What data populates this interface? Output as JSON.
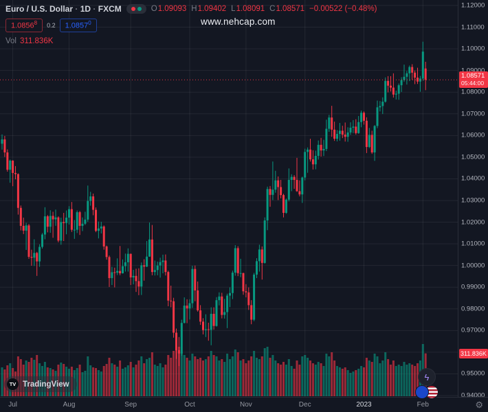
{
  "colors": {
    "background": "#131722",
    "grid": "rgba(255,255,255,0.07)",
    "up": "#089981",
    "down": "#f23645",
    "accent_blue": "#2962ff",
    "text": "#d1d4dc",
    "muted": "#787b86"
  },
  "legend": {
    "symbol": "Euro / U.S. Dollar",
    "sep": "·",
    "interval": "1D",
    "exchange": "FXCM",
    "o_label": "O",
    "o_value": "1.09093",
    "h_label": "H",
    "h_value": "1.09402",
    "l_label": "L",
    "l_value": "1.08091",
    "c_label": "C",
    "c_value": "1.08571",
    "change": "−0.00522 (−0.48%)",
    "bid_main": "1.0856",
    "bid_sup": "8",
    "spread": "0.2",
    "ask_main": "1.0857",
    "ask_sup": "0",
    "vol_label": "Vol",
    "vol_value": "311.836K"
  },
  "watermark": "www.nehcap.com",
  "last_price": {
    "value": "1.08571",
    "countdown": "05:44:00"
  },
  "volume_label": "311.836K",
  "tv_badge": {
    "logo": "TV",
    "name": "TradingView"
  },
  "price_axis": {
    "labels": [
      "1.12000",
      "1.11000",
      "1.10000",
      "1.09000",
      "1.08000",
      "1.07000",
      "1.06000",
      "1.05000",
      "1.04000",
      "1.03000",
      "1.02000",
      "1.01000",
      "1.00000",
      "0.99000",
      "0.98000",
      "0.97000",
      "0.96000",
      "0.95000",
      "0.94000"
    ]
  },
  "icons": {
    "boost": "ϟ",
    "gear": "⚙"
  },
  "chart_data": {
    "type": "candlestick",
    "title": "Euro / U.S. Dollar, 1D, FXCM",
    "ylim": [
      0.94,
      1.12
    ],
    "price_step": 0.01,
    "x_ticks": [
      {
        "label": "Jul",
        "i": 4
      },
      {
        "label": "Aug",
        "i": 25
      },
      {
        "label": "Sep",
        "i": 48
      },
      {
        "label": "Oct",
        "i": 70
      },
      {
        "label": "Nov",
        "i": 91
      },
      {
        "label": "Dec",
        "i": 113
      },
      {
        "label": "2023",
        "i": 135,
        "year": true
      },
      {
        "label": "Feb",
        "i": 157
      }
    ],
    "candles": [
      [
        1.0562,
        1.0605,
        1.0535,
        1.0582,
        210
      ],
      [
        1.0582,
        1.0598,
        1.0501,
        1.0522,
        195
      ],
      [
        1.0522,
        1.0536,
        1.0433,
        1.0442,
        225
      ],
      [
        1.0442,
        1.0489,
        1.0382,
        1.0484,
        240
      ],
      [
        1.0484,
        1.0486,
        1.0366,
        1.0427,
        205
      ],
      [
        1.0427,
        1.0459,
        1.0398,
        1.0422,
        180
      ],
      [
        1.0422,
        1.0425,
        1.0235,
        1.0266,
        290
      ],
      [
        1.0266,
        1.0277,
        1.0162,
        1.0183,
        270
      ],
      [
        1.0183,
        1.0221,
        1.0145,
        1.0161,
        230
      ],
      [
        1.0161,
        1.0197,
        1.0072,
        1.0185,
        260
      ],
      [
        1.0185,
        1.0192,
        1.0031,
        1.004,
        250
      ],
      [
        1.004,
        1.0073,
        0.9999,
        1.0036,
        280
      ],
      [
        1.0036,
        1.0121,
        0.9998,
        1.0058,
        265
      ],
      [
        1.0058,
        1.0063,
        0.9952,
        1.0019,
        300
      ],
      [
        1.0019,
        1.0098,
        0.9994,
        1.0086,
        240
      ],
      [
        1.0086,
        1.015,
        1.0078,
        1.0143,
        220
      ],
      [
        1.0143,
        1.0269,
        1.0121,
        1.0227,
        250
      ],
      [
        1.0227,
        1.0233,
        1.0153,
        1.0179,
        210
      ],
      [
        1.0179,
        1.0255,
        1.0151,
        1.0229,
        205
      ],
      [
        1.0229,
        1.0248,
        1.0128,
        1.0213,
        195
      ],
      [
        1.0213,
        1.0258,
        1.0183,
        1.0222,
        185
      ],
      [
        1.0222,
        1.0227,
        1.0107,
        1.0115,
        230
      ],
      [
        1.0115,
        1.0221,
        1.0096,
        1.0201,
        245
      ],
      [
        1.0201,
        1.0243,
        1.0113,
        1.0196,
        235
      ],
      [
        1.0196,
        1.0254,
        1.0144,
        1.0221,
        215
      ],
      [
        1.0221,
        1.0274,
        1.0189,
        1.026,
        200
      ],
      [
        1.026,
        1.0293,
        1.0155,
        1.0165,
        215
      ],
      [
        1.0165,
        1.021,
        1.0123,
        1.0165,
        190
      ],
      [
        1.0165,
        1.0254,
        1.015,
        1.0246,
        205
      ],
      [
        1.0246,
        1.0252,
        1.0141,
        1.0183,
        230
      ],
      [
        1.0183,
        1.0222,
        1.0159,
        1.0193,
        175
      ],
      [
        1.0193,
        1.0248,
        1.0187,
        1.0212,
        185
      ],
      [
        1.0212,
        1.0369,
        1.0202,
        1.0298,
        290
      ],
      [
        1.0298,
        1.034,
        1.0276,
        1.0319,
        225
      ],
      [
        1.0319,
        1.0332,
        1.0232,
        1.0257,
        210
      ],
      [
        1.0257,
        1.0268,
        1.0154,
        1.016,
        205
      ],
      [
        1.016,
        1.0203,
        1.0125,
        1.0171,
        190
      ],
      [
        1.0171,
        1.0202,
        1.0148,
        1.018,
        180
      ],
      [
        1.018,
        1.0185,
        1.0073,
        1.0088,
        220
      ],
      [
        1.0088,
        1.0092,
        1.0027,
        1.0039,
        235
      ],
      [
        1.0039,
        1.0046,
        0.9901,
        0.9942,
        280
      ],
      [
        0.9942,
        0.9994,
        0.991,
        0.9969,
        240
      ],
      [
        0.9969,
        0.999,
        0.9899,
        0.9967,
        230
      ],
      [
        0.9967,
        1.0033,
        0.9956,
        0.9975,
        215
      ],
      [
        0.9975,
        1.009,
        0.9955,
        0.9964,
        260
      ],
      [
        0.9964,
        1.0028,
        0.9963,
        0.9997,
        200
      ],
      [
        0.9997,
        1.0055,
        0.9972,
        1.0015,
        210
      ],
      [
        1.0015,
        1.0079,
        0.9972,
        1.0054,
        225
      ],
      [
        1.0054,
        1.0055,
        0.991,
        0.9945,
        250
      ],
      [
        0.9945,
        0.998,
        0.9913,
        0.9952,
        210
      ],
      [
        0.9952,
        0.9985,
        0.9878,
        0.9928,
        230
      ],
      [
        0.9928,
        0.9987,
        0.9863,
        0.9903,
        260
      ],
      [
        0.9903,
        1.0014,
        0.9864,
        1.0001,
        290
      ],
      [
        1.0001,
        1.0029,
        0.993,
        0.9995,
        240
      ],
      [
        0.9995,
        1.0113,
        0.9993,
        1.0041,
        270
      ],
      [
        1.0041,
        1.0198,
        1.004,
        1.012,
        280
      ],
      [
        1.012,
        1.0187,
        0.9955,
        0.997,
        320
      ],
      [
        0.997,
        1.0023,
        0.9954,
        0.9979,
        230
      ],
      [
        0.9979,
        1.0018,
        0.9955,
        1.0,
        220
      ],
      [
        1.0,
        1.0036,
        0.9944,
        1.0016,
        240
      ],
      [
        1.0016,
        1.005,
        0.9964,
        1.0023,
        210
      ],
      [
        1.0023,
        1.0051,
        0.9954,
        0.997,
        230
      ],
      [
        0.997,
        0.9976,
        0.9812,
        0.9838,
        300
      ],
      [
        0.9838,
        0.9907,
        0.9807,
        0.9835,
        280
      ],
      [
        0.9835,
        0.9851,
        0.9667,
        0.969,
        330
      ],
      [
        0.969,
        0.9709,
        0.9569,
        0.9609,
        340
      ],
      [
        0.9609,
        0.967,
        0.9536,
        0.9594,
        360
      ],
      [
        0.9594,
        0.975,
        0.9583,
        0.9735,
        320
      ],
      [
        0.9735,
        0.9853,
        0.9733,
        0.9815,
        300
      ],
      [
        0.9815,
        0.9844,
        0.9734,
        0.9802,
        280
      ],
      [
        0.9802,
        0.9844,
        0.9751,
        0.9826,
        260
      ],
      [
        0.9826,
        0.9999,
        0.9804,
        0.9984,
        310
      ],
      [
        0.9984,
        1.0,
        0.9835,
        0.9885,
        290
      ],
      [
        0.9885,
        0.9926,
        0.9787,
        0.9793,
        270
      ],
      [
        0.9793,
        0.9817,
        0.9726,
        0.9741,
        280
      ],
      [
        0.9741,
        0.9757,
        0.9682,
        0.9702,
        260
      ],
      [
        0.9702,
        0.9775,
        0.967,
        0.9706,
        270
      ],
      [
        0.9706,
        0.9736,
        0.9653,
        0.9703,
        290
      ],
      [
        0.9703,
        0.9807,
        0.9632,
        0.9777,
        330
      ],
      [
        0.9777,
        0.9807,
        0.9704,
        0.9721,
        300
      ],
      [
        0.9721,
        0.9854,
        0.9718,
        0.984,
        290
      ],
      [
        0.984,
        0.9876,
        0.9816,
        0.9857,
        260
      ],
      [
        0.9857,
        0.9874,
        0.9756,
        0.9772,
        270
      ],
      [
        0.9772,
        0.9846,
        0.9755,
        0.9785,
        250
      ],
      [
        0.9785,
        0.987,
        0.9711,
        0.9861,
        310
      ],
      [
        0.9861,
        0.9899,
        0.9808,
        0.9873,
        270
      ],
      [
        0.9873,
        0.9976,
        0.9845,
        0.9967,
        290
      ],
      [
        0.9967,
        1.0094,
        0.9953,
        1.008,
        340
      ],
      [
        1.008,
        1.0089,
        0.9951,
        0.9965,
        320
      ],
      [
        0.9965,
        1.0031,
        0.9946,
        0.9965,
        260
      ],
      [
        0.9965,
        0.9967,
        0.9865,
        0.9881,
        270
      ],
      [
        0.9881,
        0.9914,
        0.9853,
        0.9876,
        240
      ],
      [
        0.9876,
        0.9899,
        0.9795,
        0.9817,
        260
      ],
      [
        0.9817,
        0.984,
        0.9729,
        0.975,
        290
      ],
      [
        0.975,
        0.9966,
        0.9743,
        0.9958,
        330
      ],
      [
        0.9958,
        1.0034,
        0.9942,
        1.002,
        280
      ],
      [
        1.002,
        1.0096,
        0.9972,
        1.0074,
        270
      ],
      [
        1.0074,
        1.0088,
        0.9935,
        1.0012,
        290
      ],
      [
        1.0012,
        1.0222,
        1.0009,
        1.0208,
        350
      ],
      [
        1.0208,
        1.0364,
        1.0163,
        1.0353,
        360
      ],
      [
        1.0353,
        1.0367,
        1.0271,
        1.0326,
        280
      ],
      [
        1.0326,
        1.048,
        1.0302,
        1.035,
        300
      ],
      [
        1.035,
        1.0437,
        1.0336,
        1.0393,
        260
      ],
      [
        1.0393,
        1.0411,
        1.0302,
        1.0362,
        240
      ],
      [
        1.0362,
        1.0395,
        1.031,
        1.0325,
        230
      ],
      [
        1.0325,
        1.0331,
        1.0222,
        1.0243,
        250
      ],
      [
        1.0243,
        1.0309,
        1.0239,
        1.0304,
        230
      ],
      [
        1.0304,
        1.0448,
        1.0296,
        1.0395,
        270
      ],
      [
        1.0395,
        1.0421,
        1.0343,
        1.0409,
        220
      ],
      [
        1.0409,
        1.0417,
        1.0354,
        1.0395,
        200
      ],
      [
        1.0395,
        1.0497,
        1.034,
        1.0343,
        260
      ],
      [
        1.0343,
        1.0393,
        1.0319,
        1.0328,
        230
      ],
      [
        1.0328,
        1.041,
        1.0289,
        1.0406,
        290
      ],
      [
        1.0406,
        1.0539,
        1.0393,
        1.0524,
        300
      ],
      [
        1.0524,
        1.0545,
        1.0428,
        1.0535,
        280
      ],
      [
        1.0535,
        1.0585,
        1.048,
        1.049,
        260
      ],
      [
        1.049,
        1.0532,
        1.0443,
        1.0467,
        240
      ],
      [
        1.0467,
        1.053,
        1.0444,
        1.0506,
        230
      ],
      [
        1.0506,
        1.0577,
        1.0489,
        1.0557,
        250
      ],
      [
        1.0557,
        1.0589,
        1.0503,
        1.0531,
        240
      ],
      [
        1.0531,
        1.058,
        1.0505,
        1.0538,
        220
      ],
      [
        1.0538,
        1.0673,
        1.0528,
        1.0631,
        310
      ],
      [
        1.0631,
        1.0695,
        1.0617,
        1.0683,
        290
      ],
      [
        1.0683,
        1.0737,
        1.0594,
        1.0627,
        320
      ],
      [
        1.0627,
        1.0664,
        1.0575,
        1.0585,
        260
      ],
      [
        1.0585,
        1.0625,
        1.0573,
        1.0607,
        220
      ],
      [
        1.0607,
        1.0658,
        1.0576,
        1.0622,
        210
      ],
      [
        1.0622,
        1.0645,
        1.0588,
        1.0604,
        200
      ],
      [
        1.0604,
        1.066,
        1.0572,
        1.0594,
        210
      ],
      [
        1.0594,
        1.0638,
        1.0571,
        1.0614,
        190
      ],
      [
        1.0614,
        1.0661,
        1.0603,
        1.0636,
        170
      ],
      [
        1.0636,
        1.0671,
        1.0611,
        1.0641,
        180
      ],
      [
        1.0641,
        1.0675,
        1.0604,
        1.0611,
        190
      ],
      [
        1.0611,
        1.069,
        1.0608,
        1.0662,
        200
      ],
      [
        1.0662,
        1.0715,
        1.0638,
        1.0705,
        220
      ],
      [
        1.0705,
        1.0711,
        1.065,
        1.0668,
        210
      ],
      [
        1.0668,
        1.0684,
        1.0519,
        1.0547,
        280
      ],
      [
        1.0547,
        1.0635,
        1.0542,
        1.0603,
        260
      ],
      [
        1.0603,
        1.0622,
        1.0515,
        1.0522,
        250
      ],
      [
        1.0522,
        1.0648,
        1.0483,
        1.0644,
        310
      ],
      [
        1.0644,
        1.0761,
        1.0634,
        1.073,
        290
      ],
      [
        1.073,
        1.0759,
        1.0711,
        1.0736,
        240
      ],
      [
        1.0736,
        1.0776,
        1.0699,
        1.0756,
        260
      ],
      [
        1.0756,
        1.0868,
        1.0752,
        1.0852,
        320
      ],
      [
        1.0852,
        1.0874,
        1.0799,
        1.083,
        270
      ],
      [
        1.083,
        1.0874,
        1.0803,
        1.0821,
        230
      ],
      [
        1.0821,
        1.0887,
        1.0775,
        1.0789,
        260
      ],
      [
        1.0789,
        1.0807,
        1.0766,
        1.0793,
        220
      ],
      [
        1.0793,
        1.084,
        1.0765,
        1.0832,
        230
      ],
      [
        1.0832,
        1.0869,
        1.0801,
        1.0856,
        220
      ],
      [
        1.0856,
        1.0927,
        1.0848,
        1.0871,
        250
      ],
      [
        1.0871,
        1.0898,
        1.0835,
        1.0887,
        230
      ],
      [
        1.0887,
        1.0923,
        1.0851,
        1.0916,
        240
      ],
      [
        1.0916,
        1.0929,
        1.0857,
        1.089,
        230
      ],
      [
        1.089,
        1.09,
        1.0837,
        1.0867,
        220
      ],
      [
        1.0867,
        1.0913,
        1.0838,
        1.0849,
        240
      ],
      [
        1.0849,
        1.0875,
        1.0802,
        1.0863,
        260
      ],
      [
        1.0863,
        1.1033,
        1.0853,
        1.0987,
        380
      ],
      [
        1.09093,
        1.09402,
        1.08091,
        1.08571,
        311.836
      ]
    ]
  }
}
